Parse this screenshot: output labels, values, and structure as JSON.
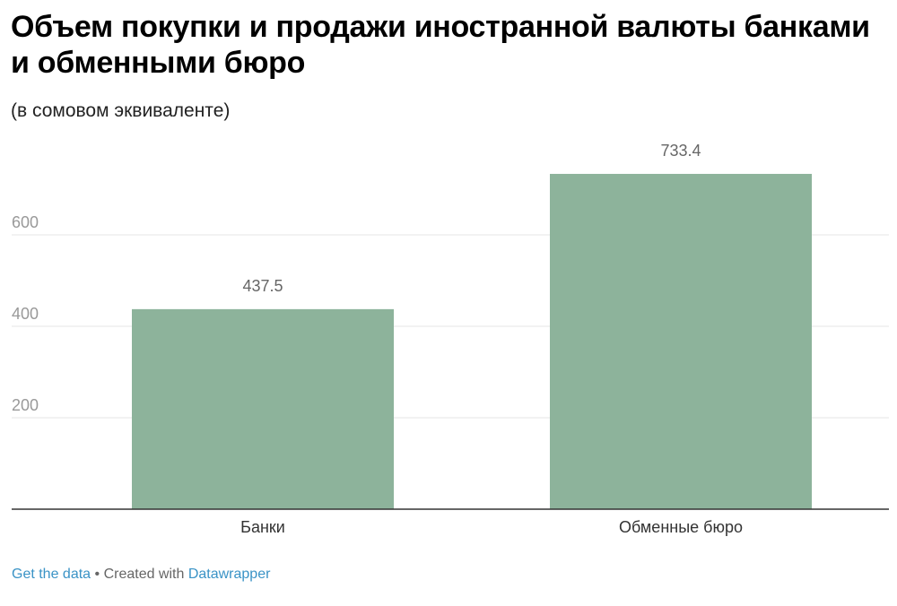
{
  "chart_data": {
    "type": "bar",
    "title": "Объем покупки и продажи иностранной валюты банками и обменными бюро",
    "subtitle": "(в сомовом эквиваленте)",
    "categories": [
      "Банки",
      "Обменные бюро"
    ],
    "values": [
      437.5,
      733.4
    ],
    "value_labels": [
      "437.5",
      "733.4"
    ],
    "yticks": [
      200,
      400,
      600
    ],
    "ytick_labels": [
      "200",
      "400",
      "600"
    ],
    "ylim": [
      0,
      750
    ],
    "grid": true,
    "bar_color": "#8db39b"
  },
  "footer": {
    "get_data": "Get the data",
    "separator": " • ",
    "created_with": "Created with ",
    "datawrapper": "Datawrapper"
  }
}
